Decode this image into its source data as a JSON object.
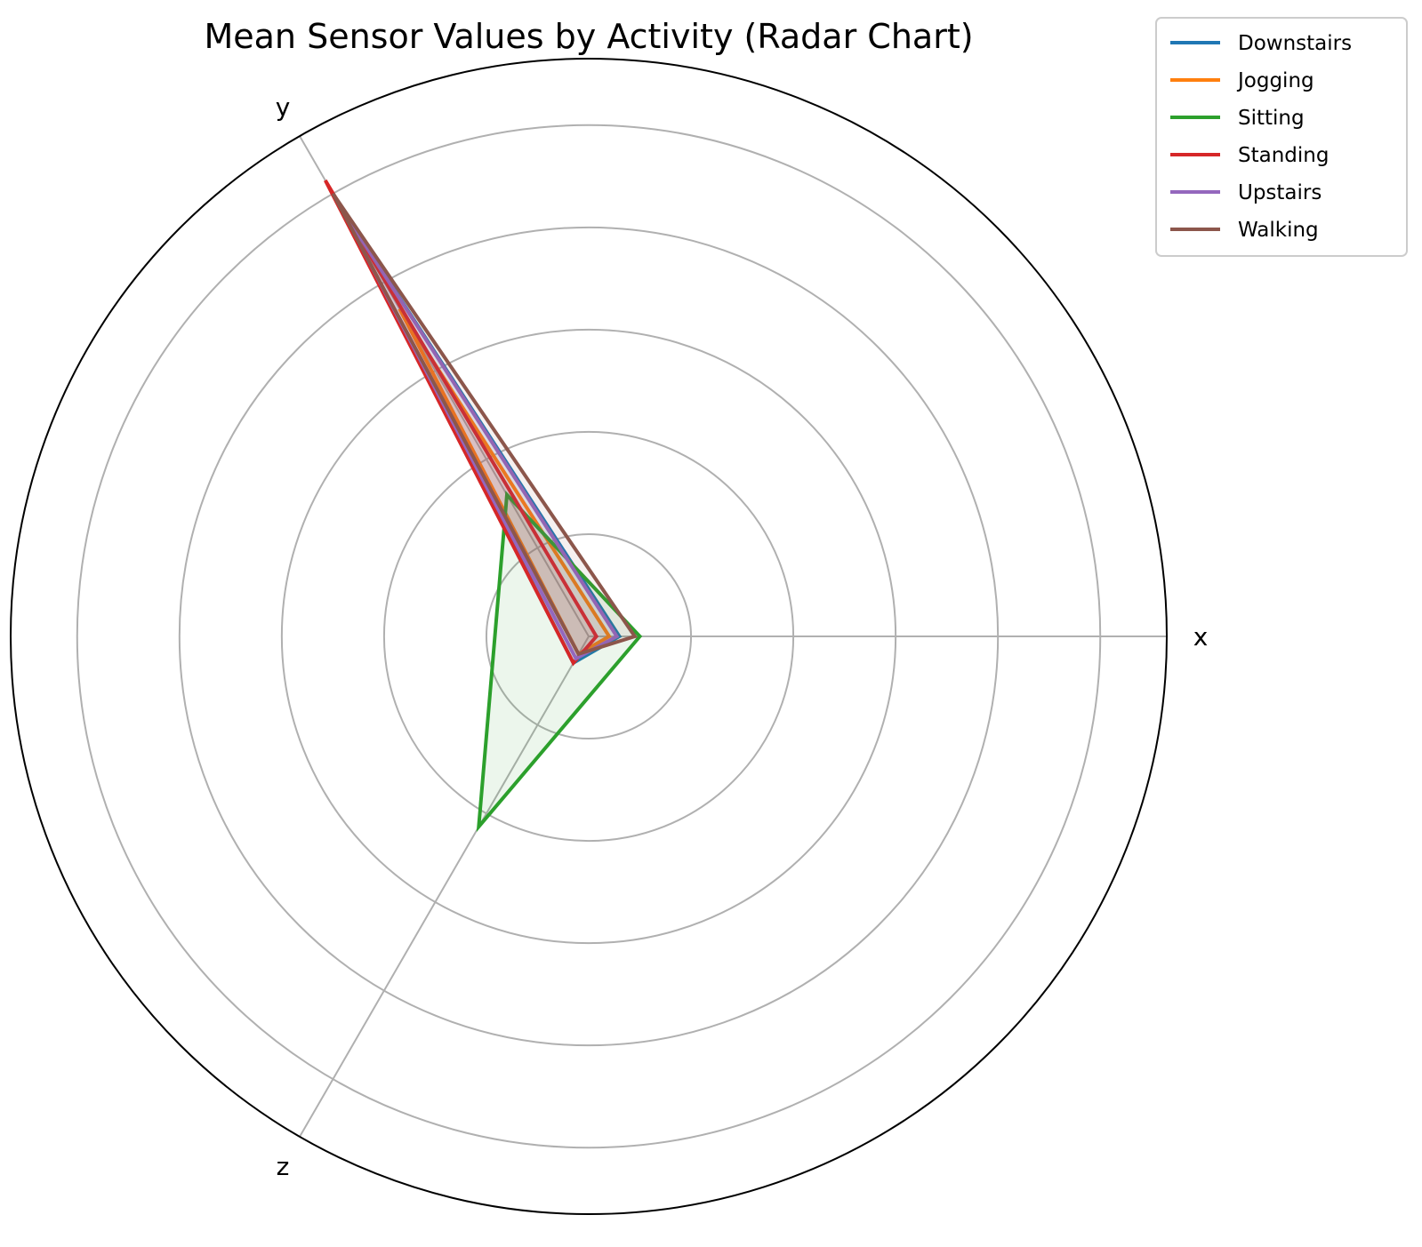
{
  "chart_data": {
    "type": "radar",
    "title": "Mean Sensor Values by Activity (Radar Chart)",
    "axes": [
      "x",
      "y",
      "z"
    ],
    "grid": true,
    "legend_position": "top-right",
    "series": [
      {
        "name": "Downstairs",
        "color": "#1f77b4",
        "values": [
          0.6,
          9.7,
          0.6
        ]
      },
      {
        "name": "Jogging",
        "color": "#ff7f0e",
        "values": [
          0.4,
          7.4,
          0.4
        ]
      },
      {
        "name": "Sitting",
        "color": "#2ca02c",
        "values": [
          1.0,
          3.2,
          4.3
        ]
      },
      {
        "name": "Standing",
        "color": "#d62728",
        "values": [
          0.15,
          10.3,
          0.6
        ]
      },
      {
        "name": "Upstairs",
        "color": "#9467bd",
        "values": [
          0.55,
          9.7,
          0.5
        ]
      },
      {
        "name": "Walking",
        "color": "#8c564b",
        "values": [
          0.9,
          10.0,
          0.4
        ]
      }
    ]
  }
}
